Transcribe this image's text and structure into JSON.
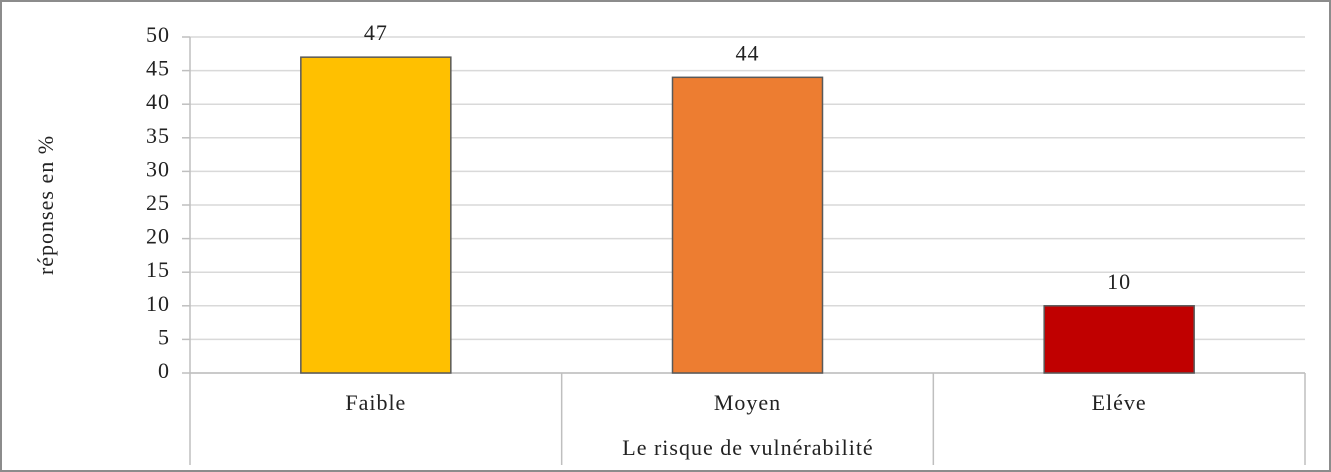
{
  "chart_data": {
    "type": "bar",
    "categories": [
      "Faible",
      "Moyen",
      "Eléve"
    ],
    "values": [
      47,
      44,
      10
    ],
    "colors": [
      "#ffc000",
      "#ed7d31",
      "#c00000"
    ],
    "ylim": [
      0,
      50
    ],
    "yticks": [
      0,
      5,
      10,
      15,
      20,
      25,
      30,
      35,
      40,
      45,
      50
    ],
    "grid": true,
    "y_label": "réponses en %",
    "x_label": "Le risque de vulnérabilité"
  }
}
